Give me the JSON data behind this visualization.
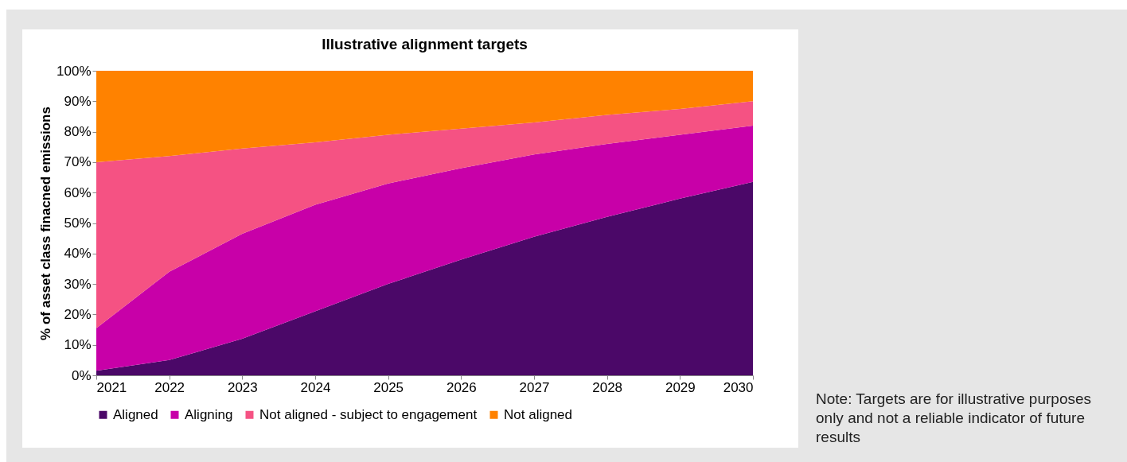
{
  "chart_data": {
    "type": "area",
    "stacked": true,
    "title": "Illustrative alignment targets",
    "ylabel": "% of asset class finacned emissions",
    "x": [
      2021,
      2022,
      2023,
      2024,
      2025,
      2026,
      2027,
      2028,
      2029,
      2030
    ],
    "series": [
      {
        "name": "Aligned",
        "color": "#4b0868",
        "values": [
          1.5,
          5,
          12,
          21,
          30,
          38,
          45.5,
          52,
          58,
          63.5
        ]
      },
      {
        "name": "Aligning",
        "color": "#c800a8",
        "values": [
          14,
          29,
          34.5,
          35,
          33,
          30,
          27,
          24,
          21,
          18.5
        ]
      },
      {
        "name": "Not aligned - subject to engagement",
        "color": "#f55283",
        "values": [
          54.5,
          38,
          28,
          20.5,
          16,
          13,
          10.5,
          9.5,
          8.5,
          8
        ]
      },
      {
        "name": "Not aligned",
        "color": "#ff8200",
        "values": [
          30,
          28,
          25.5,
          23.5,
          21,
          19,
          17,
          14.5,
          12.5,
          10
        ]
      }
    ],
    "xlim": [
      2021,
      2030
    ],
    "xticks": [
      2021,
      2022,
      2023,
      2024,
      2025,
      2026,
      2027,
      2028,
      2029,
      2030
    ],
    "ylim": [
      0,
      100
    ],
    "yticks": [
      {
        "value": 0,
        "label": "0%"
      },
      {
        "value": 10,
        "label": "10%"
      },
      {
        "value": 20,
        "label": "20%"
      },
      {
        "value": 30,
        "label": "30%"
      },
      {
        "value": 40,
        "label": "40%"
      },
      {
        "value": 50,
        "label": "50%"
      },
      {
        "value": 60,
        "label": "60%"
      },
      {
        "value": 70,
        "label": "70%"
      },
      {
        "value": 80,
        "label": "80%"
      },
      {
        "value": 90,
        "label": "90%"
      },
      {
        "value": 100,
        "label": "100%"
      }
    ],
    "grid": false,
    "legend": "bottom",
    "annotations": [
      "Note: Targets are for illustrative purposes only and not a reliable indicator of future results"
    ]
  }
}
